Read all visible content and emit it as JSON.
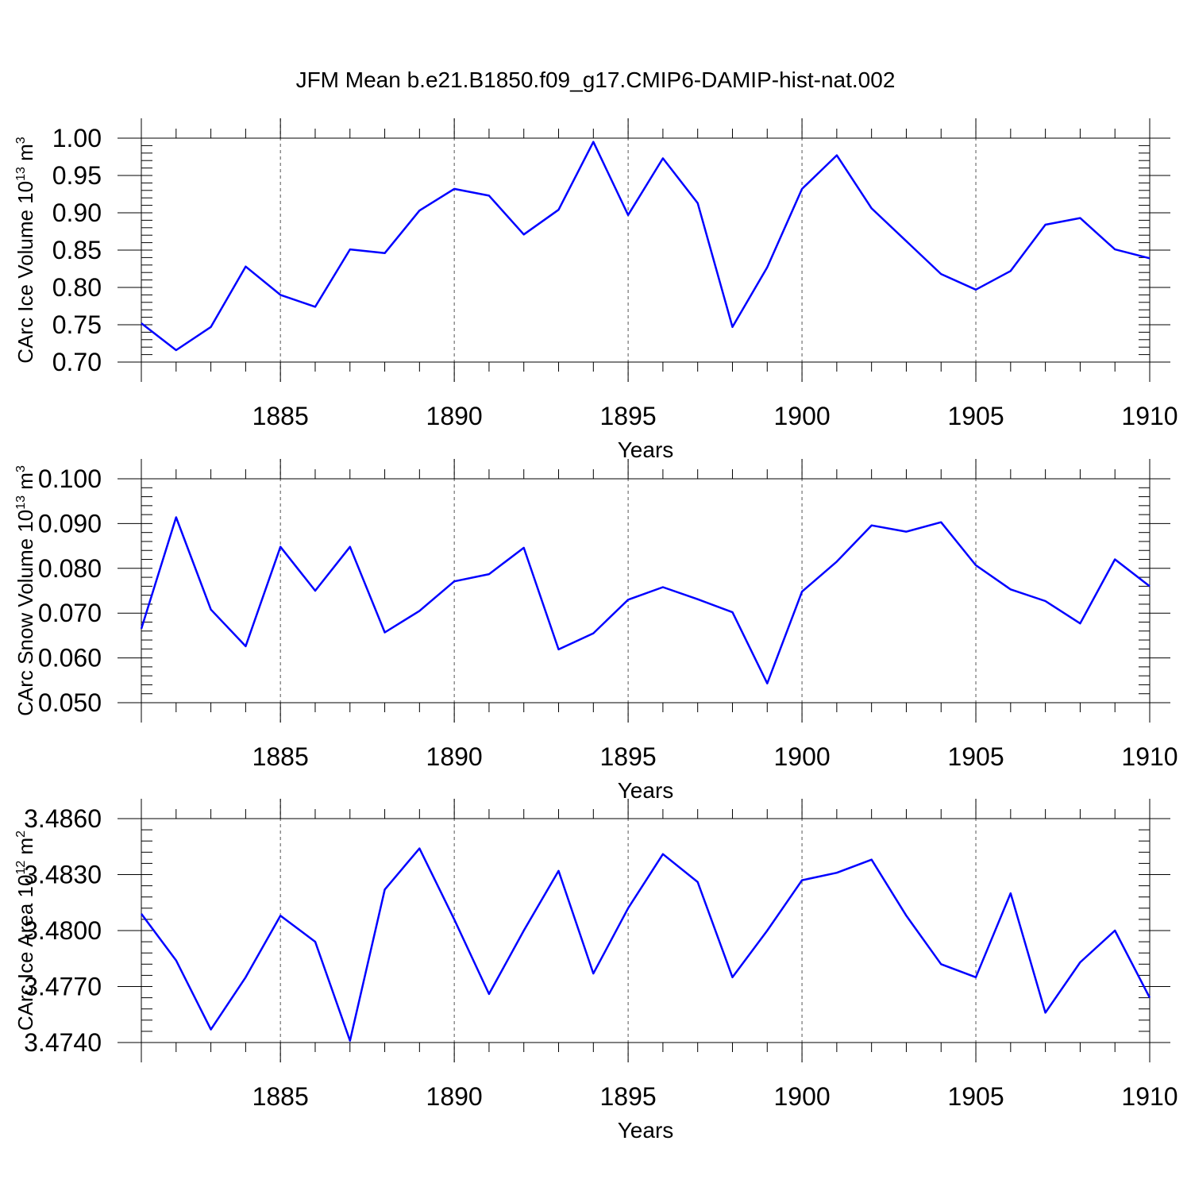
{
  "chart_data": {
    "title": "JFM Mean b.e21.B1850.f09_g17.CMIP6-DAMIP-hist-nat.002",
    "x": [
      1881,
      1882,
      1883,
      1884,
      1885,
      1886,
      1887,
      1888,
      1889,
      1890,
      1891,
      1892,
      1893,
      1894,
      1895,
      1896,
      1897,
      1898,
      1899,
      1900,
      1901,
      1902,
      1903,
      1904,
      1905,
      1906,
      1907,
      1908,
      1909,
      1910
    ],
    "xlim": [
      1881,
      1910
    ],
    "xticks": [
      1885,
      1890,
      1895,
      1900,
      1905,
      1910
    ],
    "xtick_labels": [
      "1885",
      "1890",
      "1895",
      "1900",
      "1905",
      "1910"
    ],
    "colors": {
      "line": "#0000ff",
      "axis": "#000000"
    },
    "panels": [
      {
        "type": "line",
        "ylabel": "CArc Ice Volume 10",
        "ylabel_exp": "13",
        "ylabel_unit": "m",
        "ylabel_unit_exp": "3",
        "xlabel": "Years",
        "ylim": [
          0.7,
          1.0
        ],
        "yticks": [
          0.7,
          0.75,
          0.8,
          0.85,
          0.9,
          0.95,
          1.0
        ],
        "ytick_labels": [
          "0.70",
          "0.75",
          "0.80",
          "0.85",
          "0.90",
          "0.95",
          "1.00"
        ],
        "values": [
          0.752,
          0.716,
          0.747,
          0.828,
          0.79,
          0.774,
          0.851,
          0.846,
          0.903,
          0.932,
          0.923,
          0.871,
          0.904,
          0.995,
          0.897,
          0.973,
          0.913,
          0.747,
          0.827,
          0.932,
          0.977,
          0.906,
          0.862,
          0.818,
          0.797,
          0.822,
          0.884,
          0.893,
          0.851,
          0.839
        ]
      },
      {
        "type": "line",
        "ylabel": "CArc Snow Volume 10",
        "ylabel_exp": "13",
        "ylabel_unit": "m",
        "ylabel_unit_exp": "3",
        "xlabel": "Years",
        "ylim": [
          0.05,
          0.1
        ],
        "yticks": [
          0.05,
          0.06,
          0.07,
          0.08,
          0.09,
          0.1
        ],
        "ytick_labels": [
          "0.050",
          "0.060",
          "0.070",
          "0.080",
          "0.090",
          "0.100"
        ],
        "values": [
          0.0665,
          0.0914,
          0.0708,
          0.0626,
          0.0848,
          0.075,
          0.0848,
          0.0657,
          0.0705,
          0.0771,
          0.0787,
          0.0846,
          0.0619,
          0.0655,
          0.073,
          0.0758,
          0.0731,
          0.0702,
          0.0543,
          0.0748,
          0.0815,
          0.0896,
          0.0882,
          0.0903,
          0.0807,
          0.0753,
          0.0727,
          0.0677,
          0.082,
          0.076
        ]
      },
      {
        "type": "line",
        "ylabel": "CArc Ice Area 10",
        "ylabel_exp": "12",
        "ylabel_unit": "m",
        "ylabel_unit_exp": "2",
        "xlabel": "Years",
        "ylim": [
          3.474,
          3.486
        ],
        "yticks": [
          3.474,
          3.477,
          3.48,
          3.483,
          3.486
        ],
        "ytick_labels": [
          "3.4740",
          "3.4770",
          "3.4800",
          "3.4830",
          "3.4860"
        ],
        "values": [
          3.4809,
          3.4784,
          3.4747,
          3.4775,
          3.4808,
          3.4794,
          3.4741,
          3.4822,
          3.4844,
          3.4806,
          3.4766,
          3.48,
          3.4832,
          3.4777,
          3.4812,
          3.4841,
          3.4826,
          3.4775,
          3.48,
          3.4827,
          3.4831,
          3.4838,
          3.4808,
          3.4782,
          3.4775,
          3.482,
          3.4756,
          3.4783,
          3.48,
          3.4764
        ]
      }
    ]
  }
}
